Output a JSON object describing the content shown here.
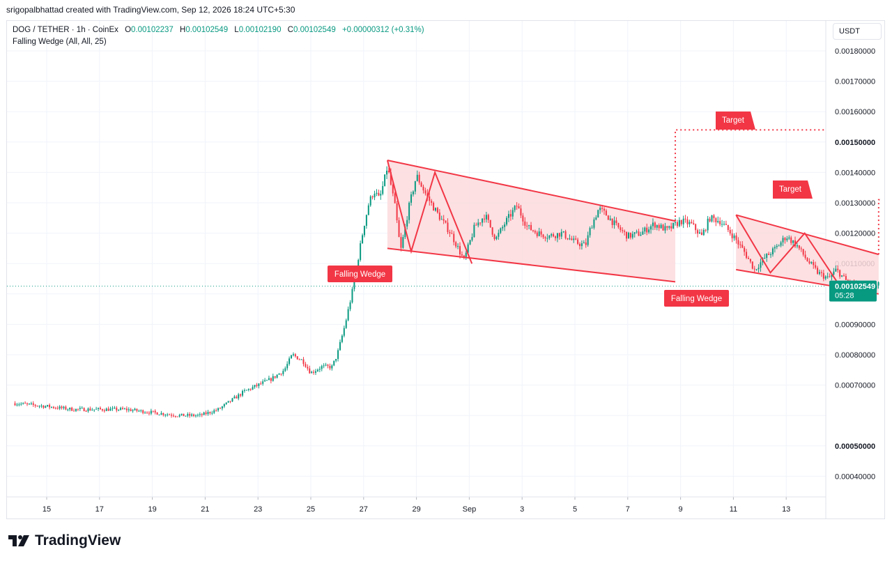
{
  "header": {
    "credit": "srigopalbhattad created with TradingView.com, Sep 12, 2026 18:24 UTC+5:30"
  },
  "legend": {
    "symbol": "DOG / TETHER · 1h · CoinEx",
    "open_key": "O",
    "open": "0.00102237",
    "high_key": "H",
    "high": "0.00102549",
    "low_key": "L",
    "low": "0.00102190",
    "close_key": "C",
    "close": "0.00102549",
    "change": "+0.00000312 (+0.31%)",
    "indicator": "Falling Wedge (All, All, 25)"
  },
  "currency": "USDT",
  "brand": {
    "name": "TradingView"
  },
  "colors": {
    "up": "#089981",
    "down": "#f23645",
    "pattern": "#f23645",
    "pattern_fill": "#fbdadd",
    "price_tag": "#089981"
  },
  "chart_data": {
    "type": "candlestick",
    "x_tick_labels": [
      "15",
      "17",
      "19",
      "21",
      "23",
      "25",
      "27",
      "29",
      "Sep",
      "3",
      "5",
      "7",
      "9",
      "11",
      "13"
    ],
    "y_tick_labels": [
      "0.00180000",
      "0.00170000",
      "0.00160000",
      "0.00150000",
      "0.00140000",
      "0.00130000",
      "0.00120000",
      "0.00110000",
      "0.00090000",
      "0.00080000",
      "0.00070000",
      "0.00050000",
      "0.00040000"
    ],
    "ylim": [
      0.00035,
      0.00185
    ],
    "last_price": {
      "value": "0.00102549",
      "countdown": "05:28"
    },
    "price_path": [
      [
        -1.2,
        0.00064
      ],
      [
        0,
        0.00063
      ],
      [
        1,
        0.00062
      ],
      [
        2,
        0.00062
      ],
      [
        3,
        0.00062
      ],
      [
        4,
        0.00061
      ],
      [
        5,
        0.0006
      ],
      [
        5.8,
        0.0006
      ],
      [
        6.5,
        0.00062
      ],
      [
        7,
        0.00065
      ],
      [
        7.5,
        0.00068
      ],
      [
        8,
        0.0007
      ],
      [
        8.5,
        0.00072
      ],
      [
        9,
        0.00075
      ],
      [
        9.3,
        0.0008
      ],
      [
        9.7,
        0.00078
      ],
      [
        10,
        0.00074
      ],
      [
        10.4,
        0.00076
      ],
      [
        10.8,
        0.00076
      ],
      [
        11,
        0.0008
      ],
      [
        11.3,
        0.0009
      ],
      [
        11.6,
        0.00102
      ],
      [
        11.8,
        0.00112
      ],
      [
        12,
        0.00122
      ],
      [
        12.2,
        0.0013
      ],
      [
        12.4,
        0.00134
      ],
      [
        12.6,
        0.00131
      ],
      [
        12.8,
        0.00138
      ],
      [
        12.9,
        0.00142
      ],
      [
        13.2,
        0.00128
      ],
      [
        13.4,
        0.00114
      ],
      [
        13.7,
        0.00128
      ],
      [
        14,
        0.00139
      ],
      [
        14.4,
        0.00132
      ],
      [
        14.9,
        0.00125
      ],
      [
        15.3,
        0.0012
      ],
      [
        15.8,
        0.00111
      ],
      [
        16.2,
        0.00122
      ],
      [
        16.6,
        0.00126
      ],
      [
        17,
        0.00118
      ],
      [
        17.4,
        0.00124
      ],
      [
        17.8,
        0.00129
      ],
      [
        18.2,
        0.00122
      ],
      [
        18.6,
        0.0012
      ],
      [
        19,
        0.00119
      ],
      [
        19.5,
        0.0012
      ],
      [
        20,
        0.00117
      ],
      [
        20.4,
        0.00116
      ],
      [
        20.6,
        0.00122
      ],
      [
        20.9,
        0.00128
      ],
      [
        21.2,
        0.00126
      ],
      [
        21.6,
        0.00122
      ],
      [
        22,
        0.00119
      ],
      [
        22.5,
        0.0012
      ],
      [
        23,
        0.00123
      ],
      [
        23.5,
        0.00121
      ],
      [
        24,
        0.00124
      ],
      [
        24.4,
        0.00123
      ],
      [
        24.8,
        0.00119
      ],
      [
        25.1,
        0.00125
      ],
      [
        25.5,
        0.00124
      ],
      [
        26,
        0.00119
      ],
      [
        26.4,
        0.00114
      ],
      [
        26.8,
        0.00108
      ],
      [
        27.2,
        0.00112
      ],
      [
        27.6,
        0.00115
      ],
      [
        28,
        0.00119
      ],
      [
        28.4,
        0.00116
      ],
      [
        28.8,
        0.00111
      ],
      [
        29.2,
        0.00107
      ],
      [
        29.6,
        0.00105
      ],
      [
        29.9,
        0.00108
      ],
      [
        30.3,
        0.00104
      ],
      [
        30.7,
        0.00103
      ],
      [
        31,
        0.00102
      ],
      [
        31.3,
        0.00102
      ],
      [
        31.5,
        0.00103
      ]
    ],
    "patterns": [
      {
        "name": "Falling Wedge",
        "upper": [
          [
            12.9,
            0.00144
          ],
          [
            23.8,
            0.00124
          ]
        ],
        "lower": [
          [
            12.9,
            0.00115
          ],
          [
            23.8,
            0.00104
          ]
        ],
        "zigzag": [
          [
            12.9,
            0.00144
          ],
          [
            13.8,
            0.00114
          ],
          [
            14.7,
            0.0014
          ],
          [
            16.1,
            0.0011
          ]
        ],
        "label": "Falling Wedge",
        "target": {
          "label": "Target",
          "from": [
            23.8,
            0.00124
          ],
          "to": [
            29.5,
            0.00154
          ]
        }
      },
      {
        "name": "Falling Wedge",
        "upper": [
          [
            26.1,
            0.00126
          ],
          [
            31.5,
            0.00113
          ]
        ],
        "lower": [
          [
            26.1,
            0.00108
          ],
          [
            31.5,
            0.001
          ]
        ],
        "zigzag": [
          [
            26.1,
            0.00126
          ],
          [
            27.4,
            0.00107
          ],
          [
            28.7,
            0.0012
          ],
          [
            30.0,
            0.00103
          ]
        ],
        "label": "Falling Wedge",
        "target": {
          "label": "Target",
          "from": [
            31.5,
            0.00113
          ],
          "to": [
            31.6,
            0.00131
          ]
        }
      }
    ]
  }
}
